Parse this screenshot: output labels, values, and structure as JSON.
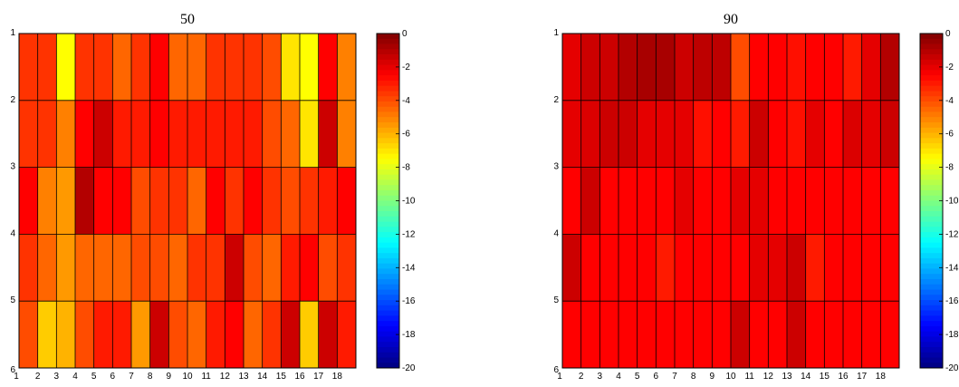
{
  "chart_data": [
    {
      "type": "heatmap",
      "title": "50",
      "x": [
        1,
        2,
        3,
        4,
        5,
        6,
        7,
        8,
        9,
        10,
        11,
        12,
        13,
        14,
        15,
        16,
        17,
        18
      ],
      "y_ticks": [
        1,
        2,
        3,
        4,
        5,
        6
      ],
      "zlim": [
        -20,
        0
      ],
      "colorbar_ticks": [
        0,
        -2,
        -4,
        -6,
        -8,
        -10,
        -12,
        -14,
        -16,
        -18,
        -20
      ],
      "colormap": "jet",
      "values": [
        [
          -3.5,
          -3.5,
          -7.5,
          -3.5,
          -3.5,
          -4.5,
          -3.5,
          -2.5,
          -4.5,
          -4.5,
          -3.5,
          -3.5,
          -3.5,
          -4.0,
          -7.0,
          -7.5,
          -2.5,
          -5.0
        ],
        [
          -3.5,
          -3.5,
          -5.0,
          -2.5,
          -1.5,
          -3.0,
          -3.0,
          -2.5,
          -3.0,
          -3.0,
          -3.0,
          -3.0,
          -3.0,
          -4.0,
          -4.5,
          -7.0,
          -1.5,
          -5.0
        ],
        [
          -2.5,
          -5.0,
          -5.5,
          -1.0,
          -2.5,
          -2.5,
          -4.0,
          -3.5,
          -3.5,
          -4.5,
          -2.5,
          -3.5,
          -2.5,
          -3.5,
          -4.0,
          -3.5,
          -3.0,
          -2.5
        ],
        [
          -3.5,
          -4.5,
          -5.5,
          -4.5,
          -4.5,
          -4.5,
          -4.0,
          -4.0,
          -4.5,
          -3.5,
          -3.5,
          -1.5,
          -4.0,
          -4.5,
          -3.0,
          -2.5,
          -4.0,
          -3.5
        ],
        [
          -4.0,
          -6.5,
          -6.0,
          -4.0,
          -3.0,
          -3.0,
          -5.5,
          -1.5,
          -4.0,
          -4.5,
          -3.0,
          -2.5,
          -4.5,
          -3.5,
          -1.5,
          -6.5,
          -1.5,
          -3.0
        ]
      ]
    },
    {
      "type": "heatmap",
      "title": "90",
      "x": [
        1,
        2,
        3,
        4,
        5,
        6,
        7,
        8,
        9,
        10,
        11,
        12,
        13,
        14,
        15,
        16,
        17,
        18
      ],
      "y_ticks": [
        1,
        2,
        3,
        4,
        5,
        6
      ],
      "zlim": [
        -20,
        0
      ],
      "colorbar_ticks": [
        0,
        -2,
        -4,
        -6,
        -8,
        -10,
        -12,
        -14,
        -16,
        -18,
        -20
      ],
      "colormap": "jet",
      "values": [
        [
          -2.0,
          -1.5,
          -1.5,
          -1.0,
          -0.8,
          -0.8,
          -1.5,
          -1.2,
          -1.2,
          -4.0,
          -2.5,
          -2.5,
          -2.8,
          -2.5,
          -2.5,
          -3.0,
          -2.0,
          -1.0
        ],
        [
          -2.0,
          -1.8,
          -1.5,
          -1.5,
          -2.0,
          -2.0,
          -2.0,
          -2.8,
          -2.5,
          -3.0,
          -1.5,
          -2.5,
          -2.8,
          -2.0,
          -2.5,
          -1.8,
          -2.0,
          -1.5
        ],
        [
          -2.5,
          -1.5,
          -2.5,
          -2.5,
          -2.5,
          -2.5,
          -2.0,
          -2.5,
          -2.5,
          -2.0,
          -2.0,
          -2.5,
          -2.5,
          -2.5,
          -2.5,
          -2.5,
          -2.5,
          -2.5
        ],
        [
          -1.5,
          -2.5,
          -2.5,
          -2.5,
          -2.5,
          -3.0,
          -2.5,
          -2.5,
          -2.5,
          -2.5,
          -2.0,
          -2.0,
          -1.5,
          -3.0,
          -2.5,
          -2.5,
          -2.5,
          -2.5
        ],
        [
          -2.5,
          -2.5,
          -2.5,
          -2.5,
          -2.5,
          -2.5,
          -2.5,
          -2.5,
          -2.5,
          -1.5,
          -2.5,
          -2.5,
          -1.5,
          -2.5,
          -2.5,
          -2.5,
          -2.5,
          -2.5
        ]
      ]
    }
  ]
}
